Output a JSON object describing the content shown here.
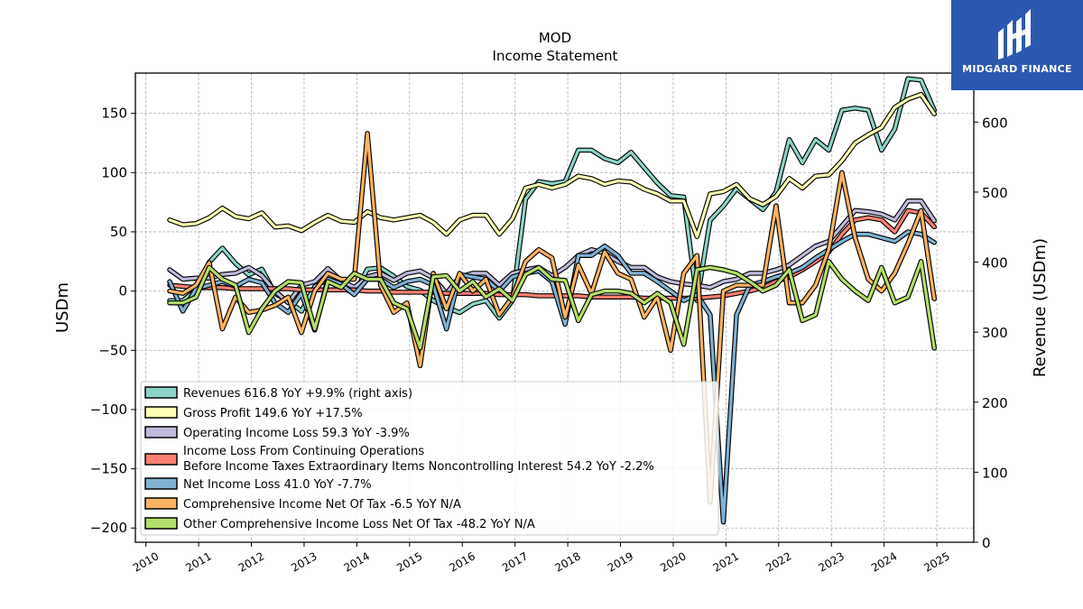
{
  "logo": {
    "text": "MIDGARD FINANCE",
    "color": "#2b59b0"
  },
  "chart_data": {
    "type": "line",
    "title": "MOD",
    "subtitle": "Income Statement",
    "ylabel": "USDm",
    "y2label": "Revenue (USDm)",
    "ylim": [
      -212,
      184
    ],
    "y2lim": [
      0,
      670
    ],
    "yticks": [
      150,
      100,
      50,
      0,
      -50,
      -100,
      -150,
      -200
    ],
    "y2ticks": [
      0,
      100,
      200,
      300,
      400,
      500,
      600
    ],
    "xlim": [
      2009.8,
      2025.7
    ],
    "xticks": [
      2010,
      2011,
      2012,
      2013,
      2014,
      2015,
      2016,
      2017,
      2018,
      2019,
      2020,
      2021,
      2022,
      2023,
      2024,
      2025
    ],
    "grid": true,
    "legend_position": "lower-left",
    "x": [
      2010.45,
      2010.7,
      2010.95,
      2011.2,
      2011.45,
      2011.7,
      2011.95,
      2012.2,
      2012.45,
      2012.7,
      2012.95,
      2013.2,
      2013.45,
      2013.7,
      2013.95,
      2014.2,
      2014.45,
      2014.7,
      2014.95,
      2015.2,
      2015.45,
      2015.7,
      2015.95,
      2016.2,
      2016.45,
      2016.7,
      2016.95,
      2017.2,
      2017.45,
      2017.7,
      2017.95,
      2018.2,
      2018.45,
      2018.7,
      2018.95,
      2019.2,
      2019.45,
      2019.7,
      2019.95,
      2020.2,
      2020.45,
      2020.7,
      2020.95,
      2021.2,
      2021.45,
      2021.7,
      2021.95,
      2022.2,
      2022.45,
      2022.7,
      2022.95,
      2023.2,
      2023.45,
      2023.7,
      2023.95,
      2024.2,
      2024.45,
      2024.7,
      2024.95
    ],
    "series": [
      {
        "name": "Revenues",
        "legend": "Revenues  616.8 YoY +9.9% (right axis)",
        "axis": "right",
        "color": "#8dd3c7",
        "values": [
          345,
          345,
          360,
          400,
          420,
          398,
          382,
          390,
          355,
          345,
          330,
          365,
          375,
          365,
          355,
          390,
          392,
          380,
          365,
          360,
          345,
          335,
          328,
          340,
          345,
          320,
          345,
          490,
          515,
          512,
          515,
          560,
          560,
          548,
          542,
          557,
          535,
          513,
          495,
          493,
          345,
          460,
          480,
          505,
          490,
          475,
          500,
          575,
          542,
          575,
          560,
          617,
          620,
          617,
          560,
          590,
          662,
          660,
          617
        ]
      },
      {
        "name": "Gross Profit",
        "legend": "Gross Profit  149.6 YoY +17.5%",
        "axis": "left",
        "color": "#ffffb3",
        "values": [
          60,
          56,
          57,
          62,
          70,
          63,
          61,
          66,
          54,
          55,
          51,
          58,
          64,
          59,
          58,
          67,
          62,
          60,
          62,
          64,
          58,
          48,
          60,
          64,
          64,
          48,
          61,
          87,
          90,
          87,
          90,
          97,
          95,
          90,
          93,
          92,
          86,
          82,
          76,
          76,
          46,
          82,
          84,
          90,
          78,
          73,
          80,
          95,
          87,
          97,
          98,
          110,
          125,
          132,
          138,
          155,
          162,
          166,
          149.6
        ]
      },
      {
        "name": "Operating Income Loss",
        "legend": "Operating Income Loss  59.3 YoY -3.9%",
        "axis": "left",
        "color": "#bebada",
        "values": [
          18,
          10,
          11,
          11,
          14,
          15,
          20,
          13,
          0,
          -10,
          5,
          8,
          19,
          9,
          3,
          12,
          15,
          9,
          15,
          17,
          11,
          -2,
          12,
          15,
          15,
          5,
          15,
          18,
          20,
          13,
          20,
          30,
          35,
          32,
          25,
          20,
          20,
          12,
          8,
          6,
          5,
          3,
          8,
          10,
          15,
          15,
          18,
          22,
          30,
          38,
          42,
          55,
          68,
          67,
          65,
          60,
          76,
          76,
          59.3
        ]
      },
      {
        "name": "Income Loss From Continuing Operations Before Income Taxes Extraordinary Items Noncontrolling Interest",
        "legend_line1": "Income Loss From Continuing Operations",
        "legend_line2": "Before Income Taxes Extraordinary Items Noncontrolling Interest  54.2 YoY -2.2%",
        "axis": "left",
        "color": "#fb8072",
        "values": [
          5,
          4,
          3,
          3,
          3,
          2,
          2,
          2,
          2,
          2,
          1,
          1,
          1,
          1,
          1,
          0,
          0,
          -1,
          -1,
          -1,
          -1,
          -2,
          -2,
          -2,
          -2,
          -3,
          -3,
          -3,
          -4,
          -4,
          -4,
          -4,
          -5,
          -5,
          -5,
          -5,
          -6,
          -6,
          -6,
          -6,
          -6,
          -5,
          -4,
          -2,
          0,
          3,
          8,
          12,
          18,
          25,
          33,
          48,
          60,
          62,
          60,
          50,
          68,
          66,
          54.2
        ]
      },
      {
        "name": "Net Income Loss",
        "legend": "Net Income Loss  41.0 YoY -7.7%",
        "axis": "left",
        "color": "#80b1d3",
        "values": [
          8,
          -17,
          2,
          5,
          8,
          4,
          10,
          7,
          -10,
          -18,
          -2,
          -33,
          10,
          6,
          -3,
          10,
          10,
          3,
          8,
          10,
          5,
          -32,
          14,
          12,
          10,
          0,
          12,
          15,
          17,
          8,
          -28,
          30,
          30,
          38,
          30,
          15,
          15,
          8,
          0,
          -8,
          -3,
          -20,
          -195,
          -20,
          5,
          8,
          12,
          15,
          20,
          28,
          35,
          42,
          48,
          48,
          45,
          42,
          50,
          48,
          41
        ]
      },
      {
        "name": "Comprehensive Income Net Of Tax",
        "legend": "Comprehensive Income Net Of Tax  -6.5 YoY N/A",
        "axis": "left",
        "color": "#fdb462",
        "values": [
          0,
          -2,
          5,
          24,
          -32,
          -5,
          -18,
          -16,
          -12,
          -5,
          -35,
          0,
          15,
          10,
          10,
          133,
          5,
          -18,
          -10,
          -63,
          15,
          -15,
          15,
          0,
          10,
          -20,
          -5,
          25,
          35,
          28,
          -22,
          22,
          -2,
          33,
          15,
          10,
          -22,
          -5,
          -50,
          15,
          30,
          -178,
          0,
          5,
          5,
          5,
          72,
          -10,
          -10,
          5,
          35,
          100,
          45,
          10,
          0,
          15,
          40,
          68,
          -6.5
        ]
      },
      {
        "name": "Other Comprehensive Income Loss Net Of Tax",
        "legend": "Other Comprehensive Income Loss Net Of Tax  -48.2 YoY N/A",
        "axis": "left",
        "color": "#b3de69",
        "values": [
          -10,
          -10,
          -5,
          20,
          10,
          5,
          -35,
          -15,
          0,
          8,
          7,
          -32,
          8,
          3,
          15,
          10,
          10,
          -10,
          -15,
          -48,
          12,
          13,
          0,
          8,
          -5,
          2,
          -8,
          14,
          20,
          10,
          9,
          -25,
          -3,
          0,
          0,
          -2,
          -10,
          -2,
          -10,
          -45,
          18,
          20,
          18,
          15,
          8,
          0,
          5,
          18,
          -25,
          -20,
          25,
          10,
          0,
          -8,
          20,
          -10,
          -5,
          25,
          -48.2
        ]
      }
    ]
  }
}
